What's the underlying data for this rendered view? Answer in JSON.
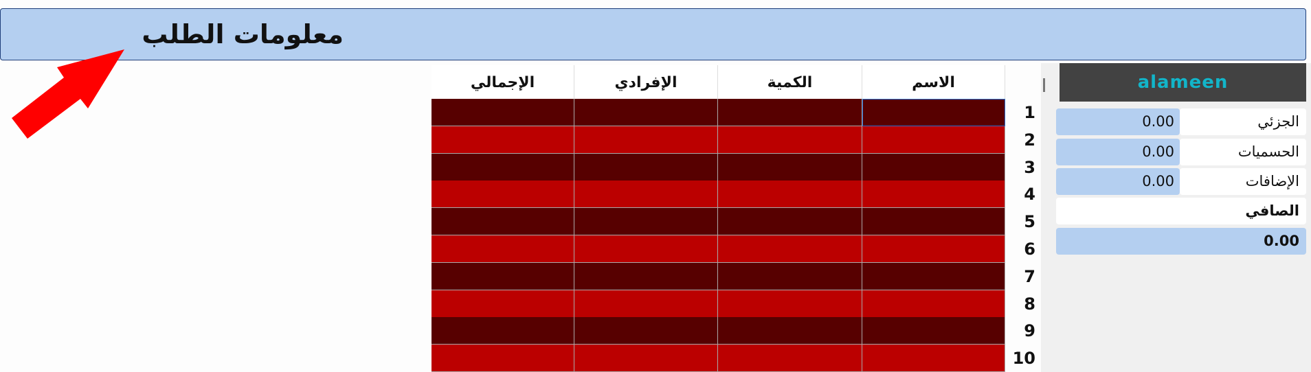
{
  "header": {
    "title": "معلومات الطلب"
  },
  "table": {
    "columns": [
      "الاسم",
      "الكمية",
      "الإفرادي",
      "الإجمالي"
    ],
    "row_numbers": [
      "1",
      "2",
      "3",
      "4",
      "5",
      "6",
      "7",
      "8",
      "9",
      "10"
    ],
    "colors": {
      "odd_row": "#570000",
      "even_row": "#bb0000",
      "selected_border": "#2a6fd1"
    }
  },
  "summary": {
    "logo": "alameen",
    "rows": [
      {
        "label": "الجزئي",
        "value": "0.00"
      },
      {
        "label": "الحسميات",
        "value": "0.00"
      },
      {
        "label": "الإضافات",
        "value": "0.00"
      }
    ],
    "net_label": "الصافي",
    "net_value": "0.00"
  },
  "annotation": {
    "icon": "red-arrow-icon",
    "color": "#ff0000"
  }
}
